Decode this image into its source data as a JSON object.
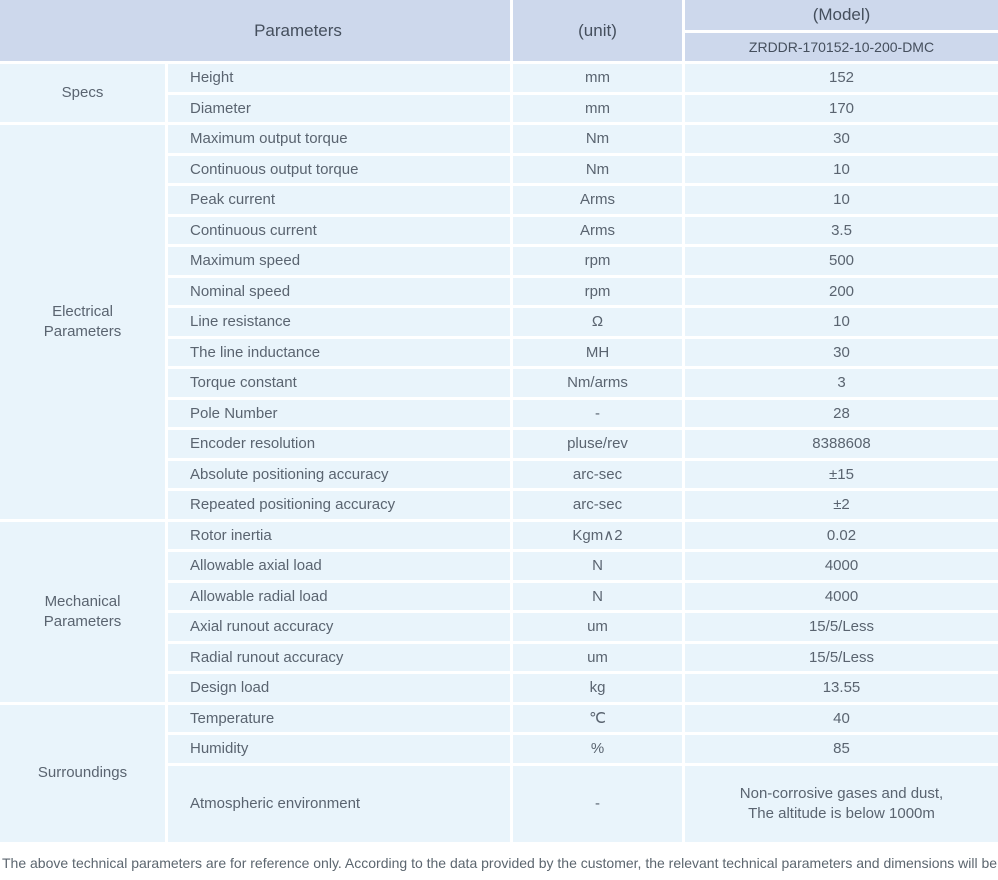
{
  "colors": {
    "header_bg": "#cdd8ec",
    "row_bg": "#e9f4fb",
    "header_text": "#454f5d",
    "body_text": "#5a6470",
    "grid_line": "#ffffff"
  },
  "table": {
    "header": {
      "parameters": "Parameters",
      "unit": "(unit)",
      "model": "(Model)",
      "model_code": "ZRDDR-170152-10-200-DMC"
    },
    "sections": [
      {
        "name": "Specs",
        "rows": [
          {
            "param": "Height",
            "unit": "mm",
            "value": "152"
          },
          {
            "param": "Diameter",
            "unit": "mm",
            "value": "170"
          }
        ]
      },
      {
        "name": "Electrical\nParameters",
        "rows": [
          {
            "param": "Maximum output torque",
            "unit": "Nm",
            "value": "30"
          },
          {
            "param": "Continuous output torque",
            "unit": "Nm",
            "value": "10"
          },
          {
            "param": "Peak current",
            "unit": "Arms",
            "value": "10"
          },
          {
            "param": "Continuous current",
            "unit": "Arms",
            "value": "3.5"
          },
          {
            "param": "Maximum speed",
            "unit": "rpm",
            "value": "500"
          },
          {
            "param": "Nominal speed",
            "unit": "rpm",
            "value": "200"
          },
          {
            "param": "Line resistance",
            "unit": "Ω",
            "value": "10"
          },
          {
            "param": "The line inductance",
            "unit": "MH",
            "value": "30"
          },
          {
            "param": "Torque constant",
            "unit": "Nm/arms",
            "value": "3"
          },
          {
            "param": "Pole Number",
            "unit": "-",
            "value": "28"
          },
          {
            "param": "Encoder resolution",
            "unit": "pluse/rev",
            "value": "8388608"
          },
          {
            "param": "Absolute positioning accuracy",
            "unit": "arc-sec",
            "value": "±15"
          },
          {
            "param": "Repeated positioning accuracy",
            "unit": "arc-sec",
            "value": "±2"
          }
        ]
      },
      {
        "name": "Mechanical\nParameters",
        "rows": [
          {
            "param": "Rotor inertia",
            "unit": "Kgm∧2",
            "value": "0.02"
          },
          {
            "param": "Allowable axial load",
            "unit": "N",
            "value": "4000"
          },
          {
            "param": "Allowable radial load",
            "unit": "N",
            "value": "4000"
          },
          {
            "param": "Axial runout accuracy",
            "unit": "um",
            "value": "15/5/Less"
          },
          {
            "param": "Radial runout accuracy",
            "unit": "um",
            "value": "15/5/Less"
          },
          {
            "param": "Design load",
            "unit": "kg",
            "value": "13.55"
          }
        ]
      },
      {
        "name": "Surroundings",
        "rows": [
          {
            "param": "Temperature",
            "unit": "℃",
            "value": "40"
          },
          {
            "param": "Humidity",
            "unit": "%",
            "value": "85"
          },
          {
            "param": "Atmospheric environment",
            "unit": "-",
            "value": "Non-corrosive gases and dust,\nThe altitude is below 1000m"
          }
        ]
      }
    ]
  },
  "footer": {
    "note": "The above technical parameters are for reference only. According to the data provided by the customer, the relevant technical parameters and dimensions will be issued."
  }
}
